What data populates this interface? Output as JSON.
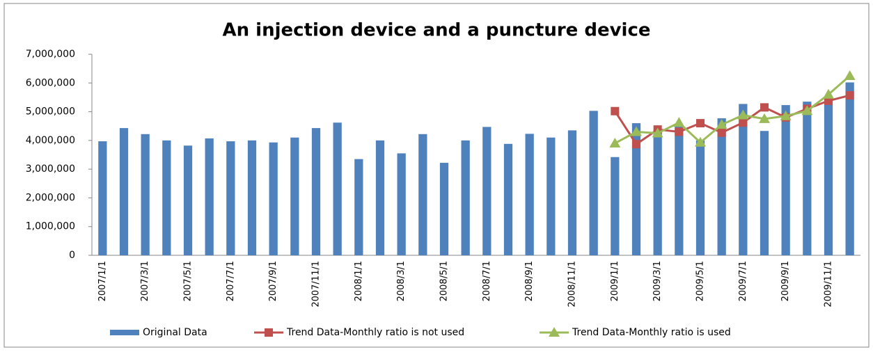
{
  "chart_data": {
    "type": "bar",
    "title": "An injection device and a puncture device",
    "categories": [
      "2007/1/1",
      null,
      "2007/3/1",
      null,
      "2007/5/1",
      null,
      "2007/7/1",
      null,
      "2007/9/1",
      null,
      "2007/11/1",
      null,
      "2008/1/1",
      null,
      "2008/3/1",
      null,
      "2008/5/1",
      null,
      "2008/7/1",
      null,
      "2008/9/1",
      null,
      "2008/11/1",
      null,
      "2009/1/1",
      null,
      "2009/3/1",
      null,
      "2009/5/1",
      null,
      "2009/7/1",
      null,
      "2009/9/1",
      null,
      "2009/11/1",
      null
    ],
    "series": [
      {
        "name": "Original Data",
        "type": "bar",
        "color": "#4f81bd",
        "values": [
          3970000,
          4430000,
          4220000,
          4000000,
          3820000,
          4070000,
          3970000,
          4000000,
          3930000,
          4100000,
          4430000,
          4620000,
          3350000,
          4000000,
          3550000,
          4220000,
          3220000,
          4000000,
          4470000,
          3880000,
          4230000,
          4100000,
          4350000,
          5030000,
          3420000,
          4600000,
          4350000,
          4500000,
          4000000,
          4770000,
          5270000,
          4330000,
          5230000,
          5350000,
          5450000,
          6020000
        ]
      },
      {
        "name": "Trend Data-Monthly ratio is not used",
        "type": "line",
        "marker": "square",
        "color": "#c0504d",
        "values": [
          null,
          null,
          null,
          null,
          null,
          null,
          null,
          null,
          null,
          null,
          null,
          null,
          null,
          null,
          null,
          null,
          null,
          null,
          null,
          null,
          null,
          null,
          null,
          null,
          5020000,
          3870000,
          4380000,
          4300000,
          4600000,
          4270000,
          4620000,
          5150000,
          4800000,
          5100000,
          5380000,
          5570000
        ]
      },
      {
        "name": "Trend Data-Monthly ratio is used",
        "type": "line",
        "marker": "triangle",
        "color": "#9bbb59",
        "values": [
          null,
          null,
          null,
          null,
          null,
          null,
          null,
          null,
          null,
          null,
          null,
          null,
          null,
          null,
          null,
          null,
          null,
          null,
          null,
          null,
          null,
          null,
          null,
          null,
          3900000,
          4300000,
          4250000,
          4620000,
          3930000,
          4550000,
          4880000,
          4750000,
          4850000,
          5030000,
          5600000,
          6250000
        ]
      }
    ],
    "ylim": [
      0,
      7000000
    ],
    "yticks": [
      0,
      {
        "value": 1000000,
        "label": "1,000,000"
      },
      {
        "value": 2000000,
        "label": "2,000,000"
      },
      {
        "value": 3000000,
        "label": "3,000,000"
      },
      {
        "value": 4000000,
        "label": "4,000,000"
      },
      {
        "value": 5000000,
        "label": "5,000,000"
      },
      {
        "value": 6000000,
        "label": "6,000,000"
      },
      {
        "value": 7000000,
        "label": "7,000,000"
      }
    ],
    "grid": false,
    "legend": "bottom"
  }
}
